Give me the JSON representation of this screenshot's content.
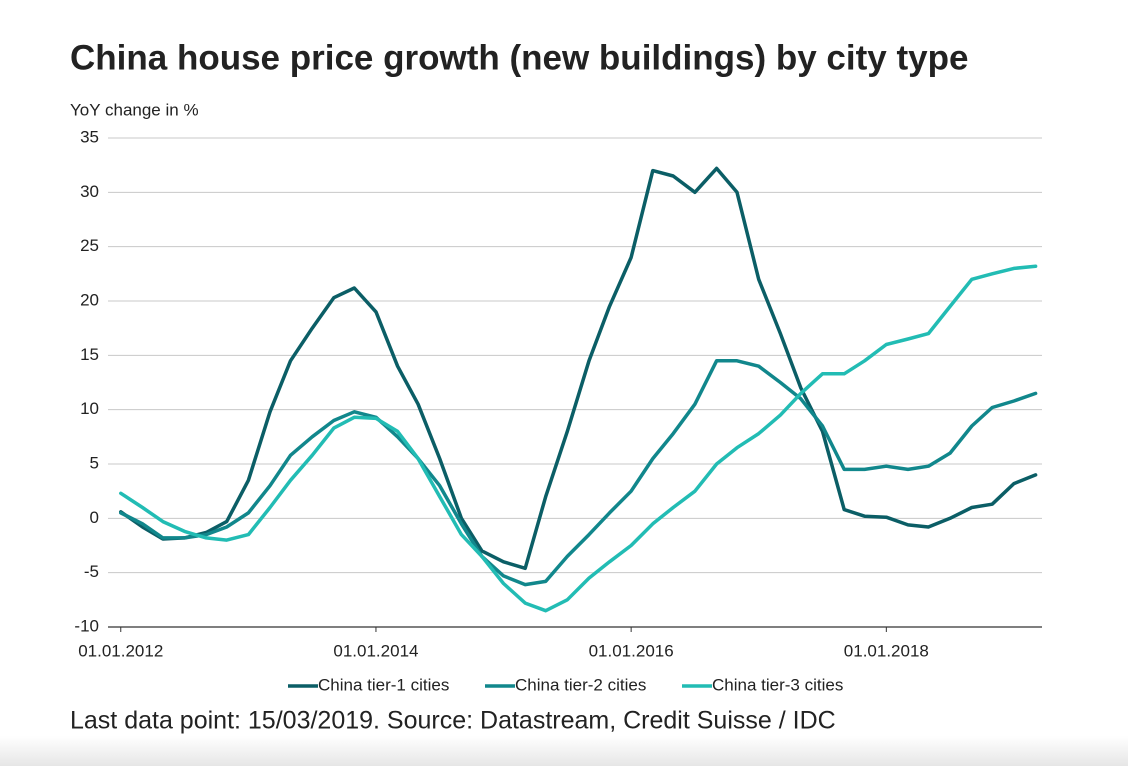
{
  "chart_data": {
    "type": "line",
    "title": "China house price growth (new buildings) by city type",
    "y_label": "YoY change in %",
    "note": "Last data point: 15/03/2019. Source: Datastream, Credit Suisse / IDC",
    "legend": "bottom",
    "grid": true,
    "x": [
      2012,
      2012.17,
      2012.33,
      2012.5,
      2012.67,
      2012.83,
      2013,
      2013.17,
      2013.33,
      2013.5,
      2013.67,
      2013.83,
      2014,
      2014.17,
      2014.33,
      2014.5,
      2014.67,
      2014.83,
      2015,
      2015.17,
      2015.33,
      2015.5,
      2015.67,
      2015.83,
      2016,
      2016.17,
      2016.33,
      2016.5,
      2016.67,
      2016.83,
      2017,
      2017.17,
      2017.33,
      2017.5,
      2017.67,
      2017.83,
      2018,
      2018.17,
      2018.33,
      2018.5,
      2018.67,
      2018.83,
      2019,
      2019.17
    ],
    "xlim": [
      2011.9,
      2019.22
    ],
    "xticks": [
      {
        "value": 2012,
        "label": "01.01.2012"
      },
      {
        "value": 2014,
        "label": "01.01.2014"
      },
      {
        "value": 2016,
        "label": "01.01.2016"
      },
      {
        "value": 2018,
        "label": "01.01.2018"
      }
    ],
    "ylim": [
      -10,
      35
    ],
    "yticks": [
      -10,
      -5,
      0,
      5,
      10,
      15,
      20,
      25,
      30,
      35
    ],
    "series": [
      {
        "name": "China tier-1 cities",
        "color": "#0b5e66",
        "values": [
          0.6,
          -0.8,
          -1.9,
          -1.8,
          -1.3,
          -0.3,
          3.5,
          9.8,
          14.5,
          17.5,
          20.3,
          21.2,
          19,
          14,
          10.5,
          5.5,
          0,
          -3,
          -4,
          -4.6,
          2,
          8,
          14.5,
          19.5,
          24,
          32,
          31.5,
          30,
          32.2,
          30,
          22,
          17,
          12,
          8,
          0.8,
          0.2,
          0.1,
          -0.6,
          -0.8,
          0,
          1,
          1.3,
          3.2,
          4
        ]
      },
      {
        "name": "China tier-2 cities",
        "color": "#11878c",
        "values": [
          0.5,
          -0.5,
          -1.8,
          -1.8,
          -1.5,
          -0.8,
          0.5,
          3,
          5.8,
          7.5,
          9,
          9.8,
          9.3,
          7.5,
          5.5,
          3,
          -0.5,
          -3.5,
          -5.3,
          -6.1,
          -5.8,
          -3.5,
          -1.5,
          0.5,
          2.5,
          5.5,
          7.8,
          10.5,
          14.5,
          14.5,
          14,
          12.5,
          11,
          8.5,
          4.5,
          4.5,
          4.8,
          4.5,
          4.8,
          6,
          8.5,
          10.2,
          10.8,
          11.5
        ]
      },
      {
        "name": "China tier-3 cities",
        "color": "#22bcb4",
        "values": [
          2.3,
          1,
          -0.3,
          -1.2,
          -1.8,
          -2,
          -1.5,
          1,
          3.5,
          5.8,
          8.3,
          9.3,
          9.2,
          8,
          5.5,
          2,
          -1.5,
          -3.5,
          -6,
          -7.8,
          -8.5,
          -7.5,
          -5.5,
          -4,
          -2.5,
          -0.5,
          1,
          2.5,
          5,
          6.5,
          7.8,
          9.5,
          11.5,
          13.3,
          13.3,
          14.5,
          16,
          16.5,
          17,
          19.5,
          22,
          22.5,
          23,
          23.2
        ]
      }
    ]
  }
}
